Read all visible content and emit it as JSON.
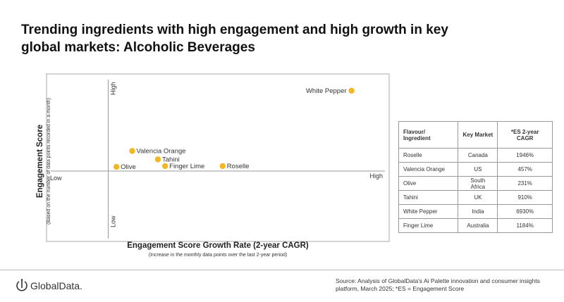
{
  "title": "Trending ingredients with high engagement and high growth in key global markets: Alcoholic Beverages",
  "chart_data": {
    "type": "scatter",
    "xlabel": "Engagement Score Growth Rate (2-year CAGR)",
    "xlabel_sub": "(Increase in the monthly data points over the last 2-year period)",
    "ylabel": "Engagement Score",
    "ylabel_sub": "(Based on the number of data points recorded in a month)",
    "x_low_label": "Low",
    "x_high_label": "High",
    "y_low_label": "Low",
    "y_high_label": "High",
    "scale": "relative, no numeric ticks (0-100)",
    "xlim": [
      0,
      100
    ],
    "ylim": [
      0,
      100
    ],
    "axis_cross": {
      "x": 18,
      "y": 42
    },
    "grid": false,
    "marker_color": "#F2B824",
    "points": [
      {
        "label": "White Pepper",
        "x": 89,
        "y": 90,
        "label_side": "left"
      },
      {
        "label": "Valencia Orange",
        "x": 25,
        "y": 54,
        "label_side": "right"
      },
      {
        "label": "Tahini",
        "x": 32.5,
        "y": 49,
        "label_side": "right"
      },
      {
        "label": "Olive",
        "x": 20.4,
        "y": 44.5,
        "label_side": "right"
      },
      {
        "label": "Finger Lime",
        "x": 34.6,
        "y": 45,
        "label_side": "right"
      },
      {
        "label": "Roselle",
        "x": 51.4,
        "y": 45,
        "label_side": "right"
      }
    ]
  },
  "table": {
    "headers": [
      "Flavour/ Ingredient",
      "Key Market",
      "*ES 2-year CAGR"
    ],
    "rows": [
      [
        "Roselle",
        "Canada",
        "1946%"
      ],
      [
        "Valencia Orange",
        "US",
        "457%"
      ],
      [
        "Olive",
        "South Africa",
        "231%"
      ],
      [
        "Tahini",
        "UK",
        "910%"
      ],
      [
        "White Pepper",
        "India",
        "6930%"
      ],
      [
        "Finger Lime",
        "Australia",
        "1184%"
      ]
    ]
  },
  "logo": "GlobalData.",
  "source": "Source: Analysis of GlobalData's Ai Palette innovation and consumer insights platform, March 2025; *ES = Engagement Score"
}
